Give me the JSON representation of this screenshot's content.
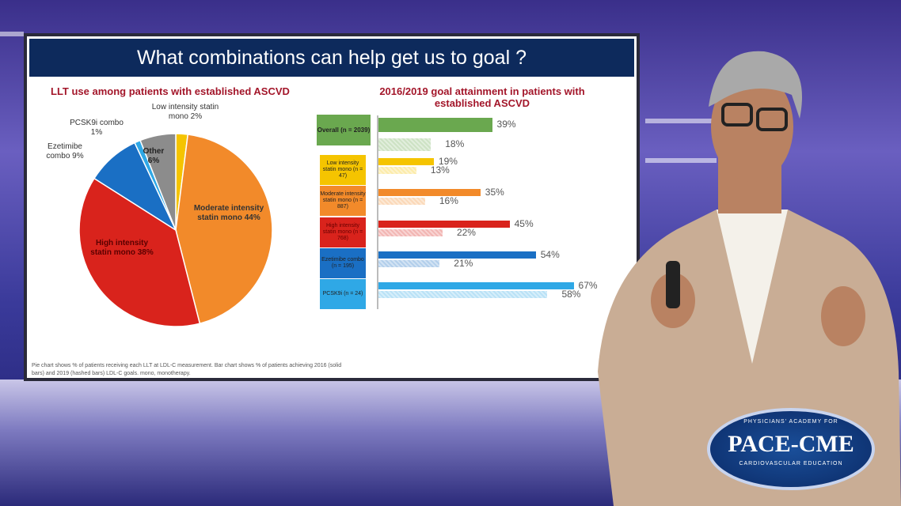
{
  "slide": {
    "title": "What combinations can help get us to goal ?",
    "left_heading": "LLT use among patients with established ASCVD",
    "right_heading": "2016/2019 goal attainment in patients with established ASCVD",
    "footnote": "Pie chart shows % of patients receiving each LLT at LDL-C measurement. Bar chart shows % of patients achieving 2016 (solid bars) and 2019 (hashed bars) LDL-C goals. mono, monotherapy."
  },
  "logo": {
    "text": "PACE-CME",
    "arc_top": "PHYSICIANS' ACADEMY FOR",
    "arc_bottom": "CARDIOVASCULAR EDUCATION"
  },
  "chart_data": [
    {
      "type": "pie",
      "title": "LLT use among patients with established ASCVD",
      "slices": [
        {
          "label": "Low intensity statin mono 2%",
          "value": 2,
          "color": "#f5c400"
        },
        {
          "label": "Moderate intensity statin mono 44%",
          "value": 44,
          "color": "#f28a2a"
        },
        {
          "label": "High intensity statin mono 38%",
          "value": 38,
          "color": "#d9231c"
        },
        {
          "label": "Ezetimibe combo 9%",
          "value": 9,
          "color": "#1a6fc4"
        },
        {
          "label": "PCSK9i combo 1%",
          "value": 1,
          "color": "#2fa8e6"
        },
        {
          "label": "Other 6%",
          "value": 6,
          "color": "#8c8c8c"
        }
      ]
    },
    {
      "type": "bar",
      "orientation": "horizontal",
      "title": "2016/2019 goal attainment in patients with established ASCVD",
      "categories": [
        "Overall (n = 2039)",
        "Low intensity statin mono (n = 47)",
        "Moderate intensity statin mono (n = 887)",
        "High intensity statin mono (n = 768)",
        "Ezetimibe combo (n = 195)",
        "PCSK9i (n = 24)"
      ],
      "colors": [
        "#6aa84f",
        "#f5c400",
        "#f28a2a",
        "#d9231c",
        "#1a6fc4",
        "#2fa8e6"
      ],
      "series": [
        {
          "name": "2016 (solid bars)",
          "values": [
            39,
            19,
            35,
            45,
            54,
            67
          ],
          "labels": [
            "39%",
            "19%",
            "35%",
            "45%",
            "54%",
            "67%"
          ]
        },
        {
          "name": "2019 (hashed bars)",
          "values": [
            18,
            13,
            16,
            22,
            21,
            58
          ],
          "labels": [
            "18%",
            "13%",
            "16%",
            "22%",
            "21%",
            "58%"
          ]
        }
      ]
    }
  ]
}
